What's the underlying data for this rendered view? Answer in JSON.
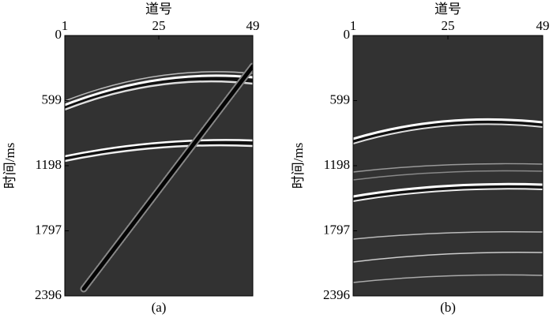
{
  "chart_data": [
    {
      "type": "seismic",
      "caption": "(a)",
      "xlabel": "道号",
      "ylabel": "时间/ms",
      "xlim": [
        1,
        49
      ],
      "xticks": [
        1,
        25,
        49
      ],
      "ylim": [
        0,
        2396
      ],
      "yticks": [
        0,
        599,
        1198,
        1797,
        2396
      ]
    },
    {
      "type": "seismic",
      "caption": "(b)",
      "xlabel": "道号",
      "ylabel": "时间/ms",
      "xlim": [
        1,
        49
      ],
      "xticks": [
        1,
        25,
        49
      ],
      "ylim": [
        0,
        2396
      ],
      "yticks": [
        0,
        599,
        1198,
        1797,
        2396
      ]
    }
  ]
}
